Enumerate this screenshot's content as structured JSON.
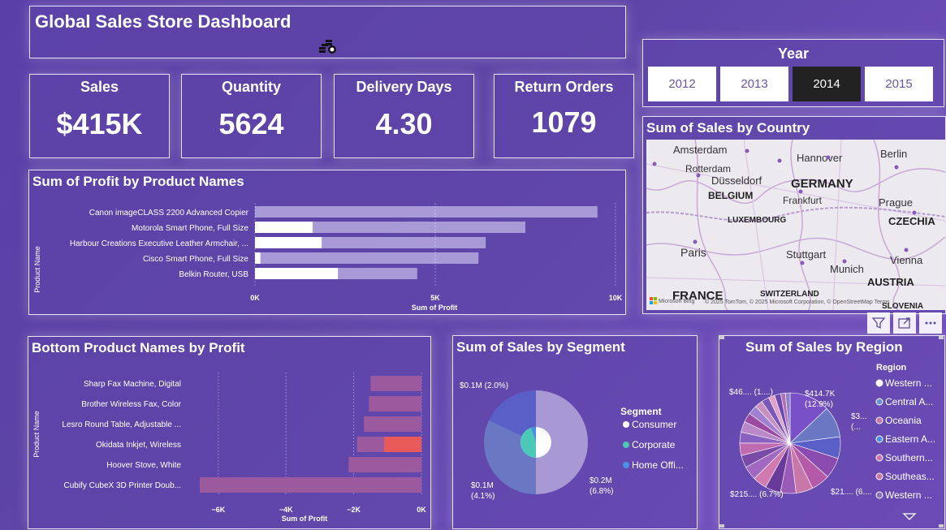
{
  "header": {
    "title": "Global Sales Store Dashboard",
    "icon": "coins-icon"
  },
  "kpis": [
    {
      "label": "Sales",
      "value": "$415K"
    },
    {
      "label": "Quantity",
      "value": "5624"
    },
    {
      "label": "Delivery Days",
      "value": "4.30"
    },
    {
      "label": "Return Orders",
      "value": "1079"
    }
  ],
  "year_slicer": {
    "title": "Year",
    "years": [
      "2012",
      "2013",
      "2014",
      "2015"
    ],
    "selected": "2014"
  },
  "map": {
    "title": "Sum of Sales by Country",
    "cities": [
      "Amsterdam",
      "Hannover",
      "Berlin",
      "Rotterdam",
      "Düsseldorf",
      "Frankfurt",
      "Prague",
      "Paris",
      "Stuttgart",
      "Munich",
      "Vienna"
    ],
    "countries": [
      "BELGIUM",
      "GERMANY",
      "LUXEMBOURG",
      "CZECHIA",
      "FRANCE",
      "SWITZERLAND",
      "AUSTRIA",
      "SLOVENIA"
    ],
    "attribution": "© 2025 TomTom, © 2025 Microsoft Corporation, © OpenStreetMap  Terms",
    "bing_label": "Microsoft Bing"
  },
  "visual_header_icons": [
    "filter-icon",
    "focus-mode-icon",
    "more-options-icon"
  ],
  "chart_data": [
    {
      "type": "bar",
      "orientation": "horizontal",
      "title": "Sum of Profit by Product Names",
      "xlabel": "Sum of Profit",
      "ylabel": "Product Name",
      "xlim": [
        0,
        10000
      ],
      "xticks": [
        "0K",
        "5K",
        "10K"
      ],
      "categories": [
        "Canon imageCLASS 2200 Advanced Copier",
        "Motorola Smart Phone, Full Size",
        "Harbour Creations Executive Leather Armchair, ...",
        "Cisco Smart Phone, Full Size",
        "Belkin Router, USB"
      ],
      "series": [
        {
          "values": [
            9500,
            7500,
            6400,
            6200,
            4500
          ]
        },
        {
          "values": [
            0,
            1600,
            1850,
            150,
            2300
          ]
        }
      ]
    },
    {
      "type": "bar",
      "orientation": "horizontal",
      "title": "Bottom Product Names by Profit",
      "xlabel": "Sum of Profit",
      "ylabel": "Product Name",
      "xlim": [
        -6500,
        0
      ],
      "xticks": [
        "−6K",
        "−4K",
        "−2K",
        "0K"
      ],
      "categories": [
        "Sharp Fax Machine, Digital",
        "Brother Wireless Fax, Color",
        "Lesro Round Table, Adjustable ...",
        "Okidata Inkjet, Wireless",
        "Hoover Stove, White",
        "Cubify CubeX 3D Printer Doub..."
      ],
      "series": [
        {
          "values": [
            -1500,
            -1550,
            -1700,
            -1900,
            -2150,
            -6600
          ]
        },
        {
          "values": [
            0,
            0,
            0,
            -1100,
            0,
            0
          ]
        }
      ]
    },
    {
      "type": "pie",
      "variant": "donut",
      "title": "Sum of Sales by Segment",
      "legend_title": "Segment",
      "legend": [
        "Consumer",
        "Corporate",
        "Home Offi..."
      ],
      "values": [
        0.2,
        0.1,
        0.1
      ],
      "colors": [
        "#a898d4",
        "#6a78c4",
        "#5a5fc8"
      ],
      "legend_colors": [
        "#ffffff",
        "#4cc8b8",
        "#4a90e8"
      ],
      "data_labels": [
        "$0.2M\n(6.8%)",
        "$0.1M\n(4.1%)",
        "$0.1M (2.0%)"
      ]
    },
    {
      "type": "pie",
      "title": "Sum of Sales by Region",
      "legend_title": "Region",
      "legend": [
        "Western ...",
        "Central A...",
        "Oceania",
        "Eastern A...",
        "Southern...",
        "Southeas...",
        "Western ..."
      ],
      "legend_colors": [
        "#ffffff",
        "#6a90d0",
        "#c878a8",
        "#4a90e8",
        "#c878a8",
        "#c878a8",
        "#8a70b8"
      ],
      "data_labels": [
        "$414.7K\n(12.9%)",
        "$3...\n(...",
        "$21.... (6....",
        "$215.... (6.7%)",
        "$46.... (1....)"
      ]
    }
  ]
}
